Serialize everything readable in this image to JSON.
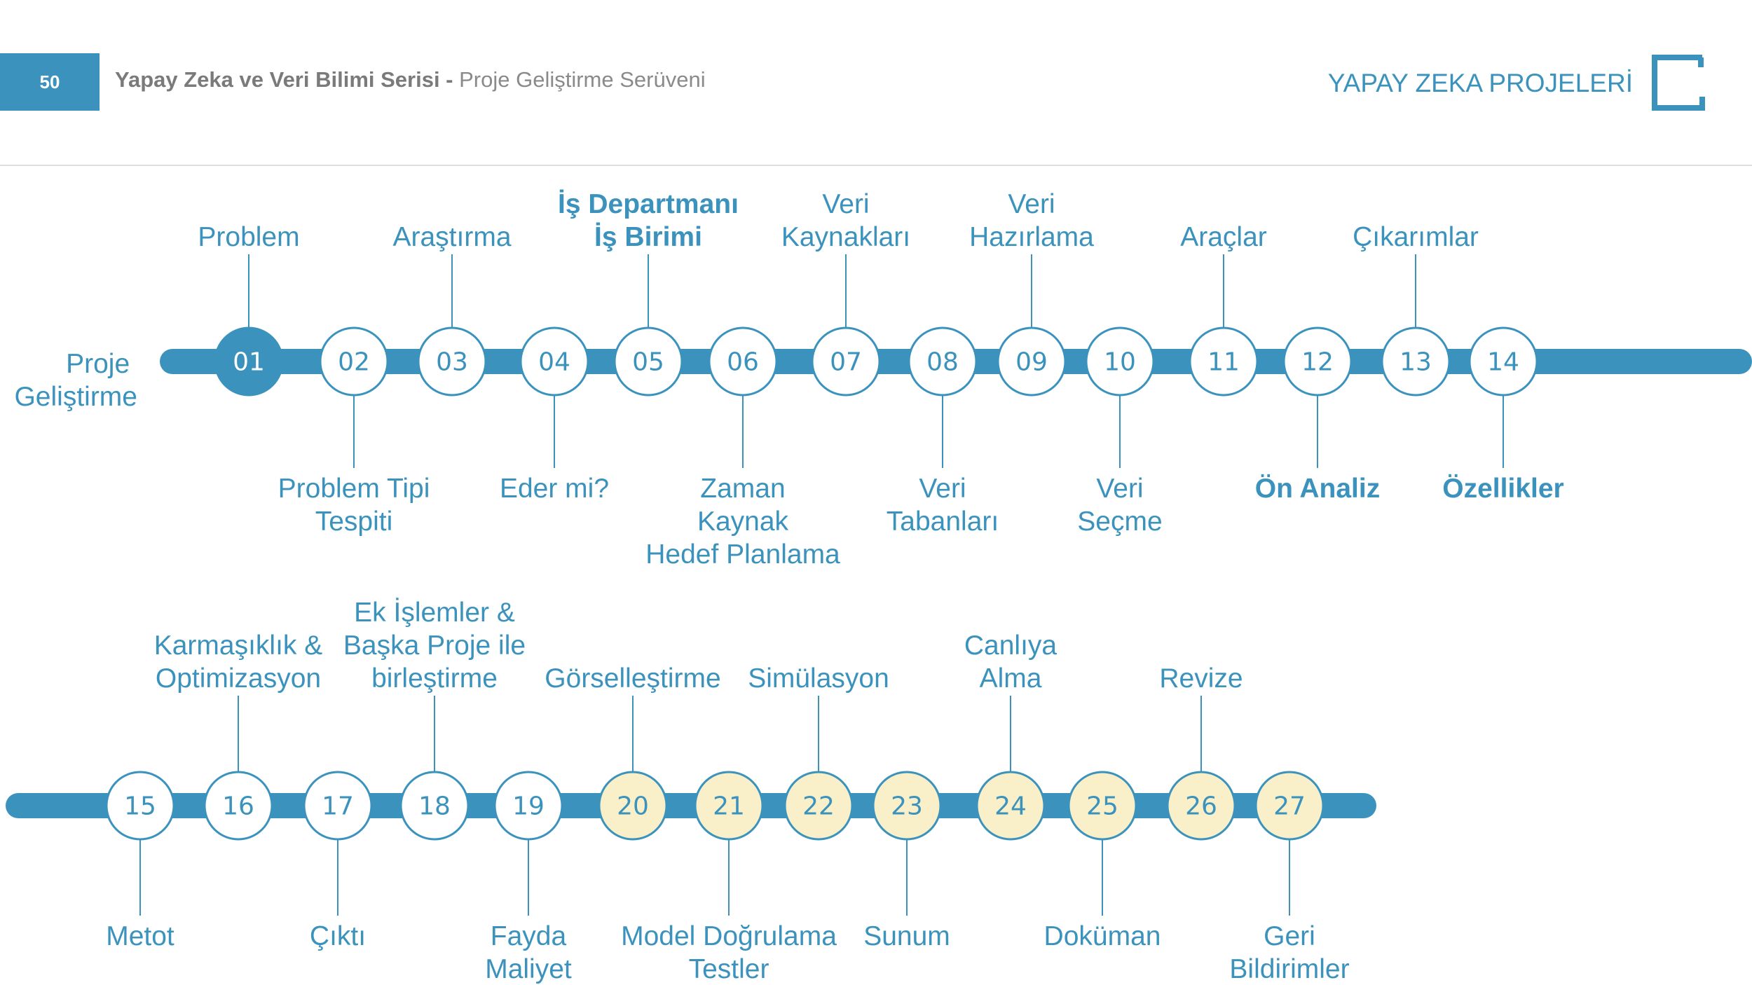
{
  "header": {
    "page_number": "50",
    "series_bold": "Yapay Zeka ve Veri Bilimi Serisi -",
    "series_rest": "Proje Geliştirme Serüveni",
    "section_title": "YAPAY ZEKA PROJELERİ",
    "logo_icon": "bracket-square-icon"
  },
  "colors": {
    "accent": "#3b93bd",
    "node_fill": "#ffffff",
    "highlight_fill": "#f9efc9",
    "active_fill": "#3b93bd"
  },
  "start_label": [
    "Proje",
    "Geliştirme"
  ],
  "steps": [
    {
      "num": "01",
      "label": [
        "Problem"
      ],
      "pos": "top",
      "style": "active"
    },
    {
      "num": "02",
      "label": [
        "Problem Tipi",
        "Tespiti"
      ],
      "pos": "bottom",
      "style": "normal"
    },
    {
      "num": "03",
      "label": [
        "Araştırma"
      ],
      "pos": "top",
      "style": "normal"
    },
    {
      "num": "04",
      "label": [
        "Eder mi?"
      ],
      "pos": "bottom",
      "style": "normal"
    },
    {
      "num": "05",
      "label": [
        "İş Departmanı",
        "İş Birimi"
      ],
      "pos": "top",
      "style": "normal",
      "bold": true
    },
    {
      "num": "06",
      "label": [
        "Zaman",
        "Kaynak",
        "Hedef Planlama"
      ],
      "pos": "bottom",
      "style": "normal"
    },
    {
      "num": "07",
      "label": [
        "Veri",
        "Kaynakları"
      ],
      "pos": "top",
      "style": "normal"
    },
    {
      "num": "08",
      "label": [
        "Veri",
        "Tabanları"
      ],
      "pos": "bottom",
      "style": "normal"
    },
    {
      "num": "09",
      "label": [
        "Veri",
        "Hazırlama"
      ],
      "pos": "top",
      "style": "normal"
    },
    {
      "num": "10",
      "label": [
        "Veri",
        "Seçme"
      ],
      "pos": "bottom",
      "style": "normal"
    },
    {
      "num": "11",
      "label": [
        "Araçlar"
      ],
      "pos": "top",
      "style": "normal"
    },
    {
      "num": "12",
      "label": [
        "Ön Analiz"
      ],
      "pos": "bottom",
      "style": "normal",
      "bold": true
    },
    {
      "num": "13",
      "label": [
        "Çıkarımlar"
      ],
      "pos": "top",
      "style": "normal"
    },
    {
      "num": "14",
      "label": [
        "Özellikler"
      ],
      "pos": "bottom",
      "style": "normal",
      "bold": true
    },
    {
      "num": "15",
      "label": [
        "Metot"
      ],
      "pos": "bottom",
      "style": "normal"
    },
    {
      "num": "16",
      "label": [
        "Karmaşıklık &",
        "Optimizasyon"
      ],
      "pos": "top",
      "style": "normal"
    },
    {
      "num": "17",
      "label": [
        "Çıktı"
      ],
      "pos": "bottom",
      "style": "normal"
    },
    {
      "num": "18",
      "label": [
        "Ek İşlemler &",
        "Başka Proje ile",
        "birleştirme"
      ],
      "pos": "top",
      "style": "normal"
    },
    {
      "num": "19",
      "label": [
        "Fayda",
        "Maliyet"
      ],
      "pos": "bottom",
      "style": "normal"
    },
    {
      "num": "20",
      "label": [
        "Görselleştirme"
      ],
      "pos": "top",
      "style": "highlight"
    },
    {
      "num": "21",
      "label": [
        "Model Doğrulama",
        "Testler"
      ],
      "pos": "bottom",
      "style": "highlight"
    },
    {
      "num": "22",
      "label": [
        "Simülasyon"
      ],
      "pos": "top",
      "style": "highlight"
    },
    {
      "num": "23",
      "label": [
        "Sunum"
      ],
      "pos": "bottom",
      "style": "highlight"
    },
    {
      "num": "24",
      "label": [
        "Canlıya",
        "Alma"
      ],
      "pos": "top",
      "style": "highlight"
    },
    {
      "num": "25",
      "label": [
        "Doküman"
      ],
      "pos": "bottom",
      "style": "highlight"
    },
    {
      "num": "26",
      "label": [
        "Revize"
      ],
      "pos": "top",
      "style": "highlight"
    },
    {
      "num": "27",
      "label": [
        "Geri",
        "Bildirimler"
      ],
      "pos": "bottom",
      "style": "highlight"
    }
  ]
}
